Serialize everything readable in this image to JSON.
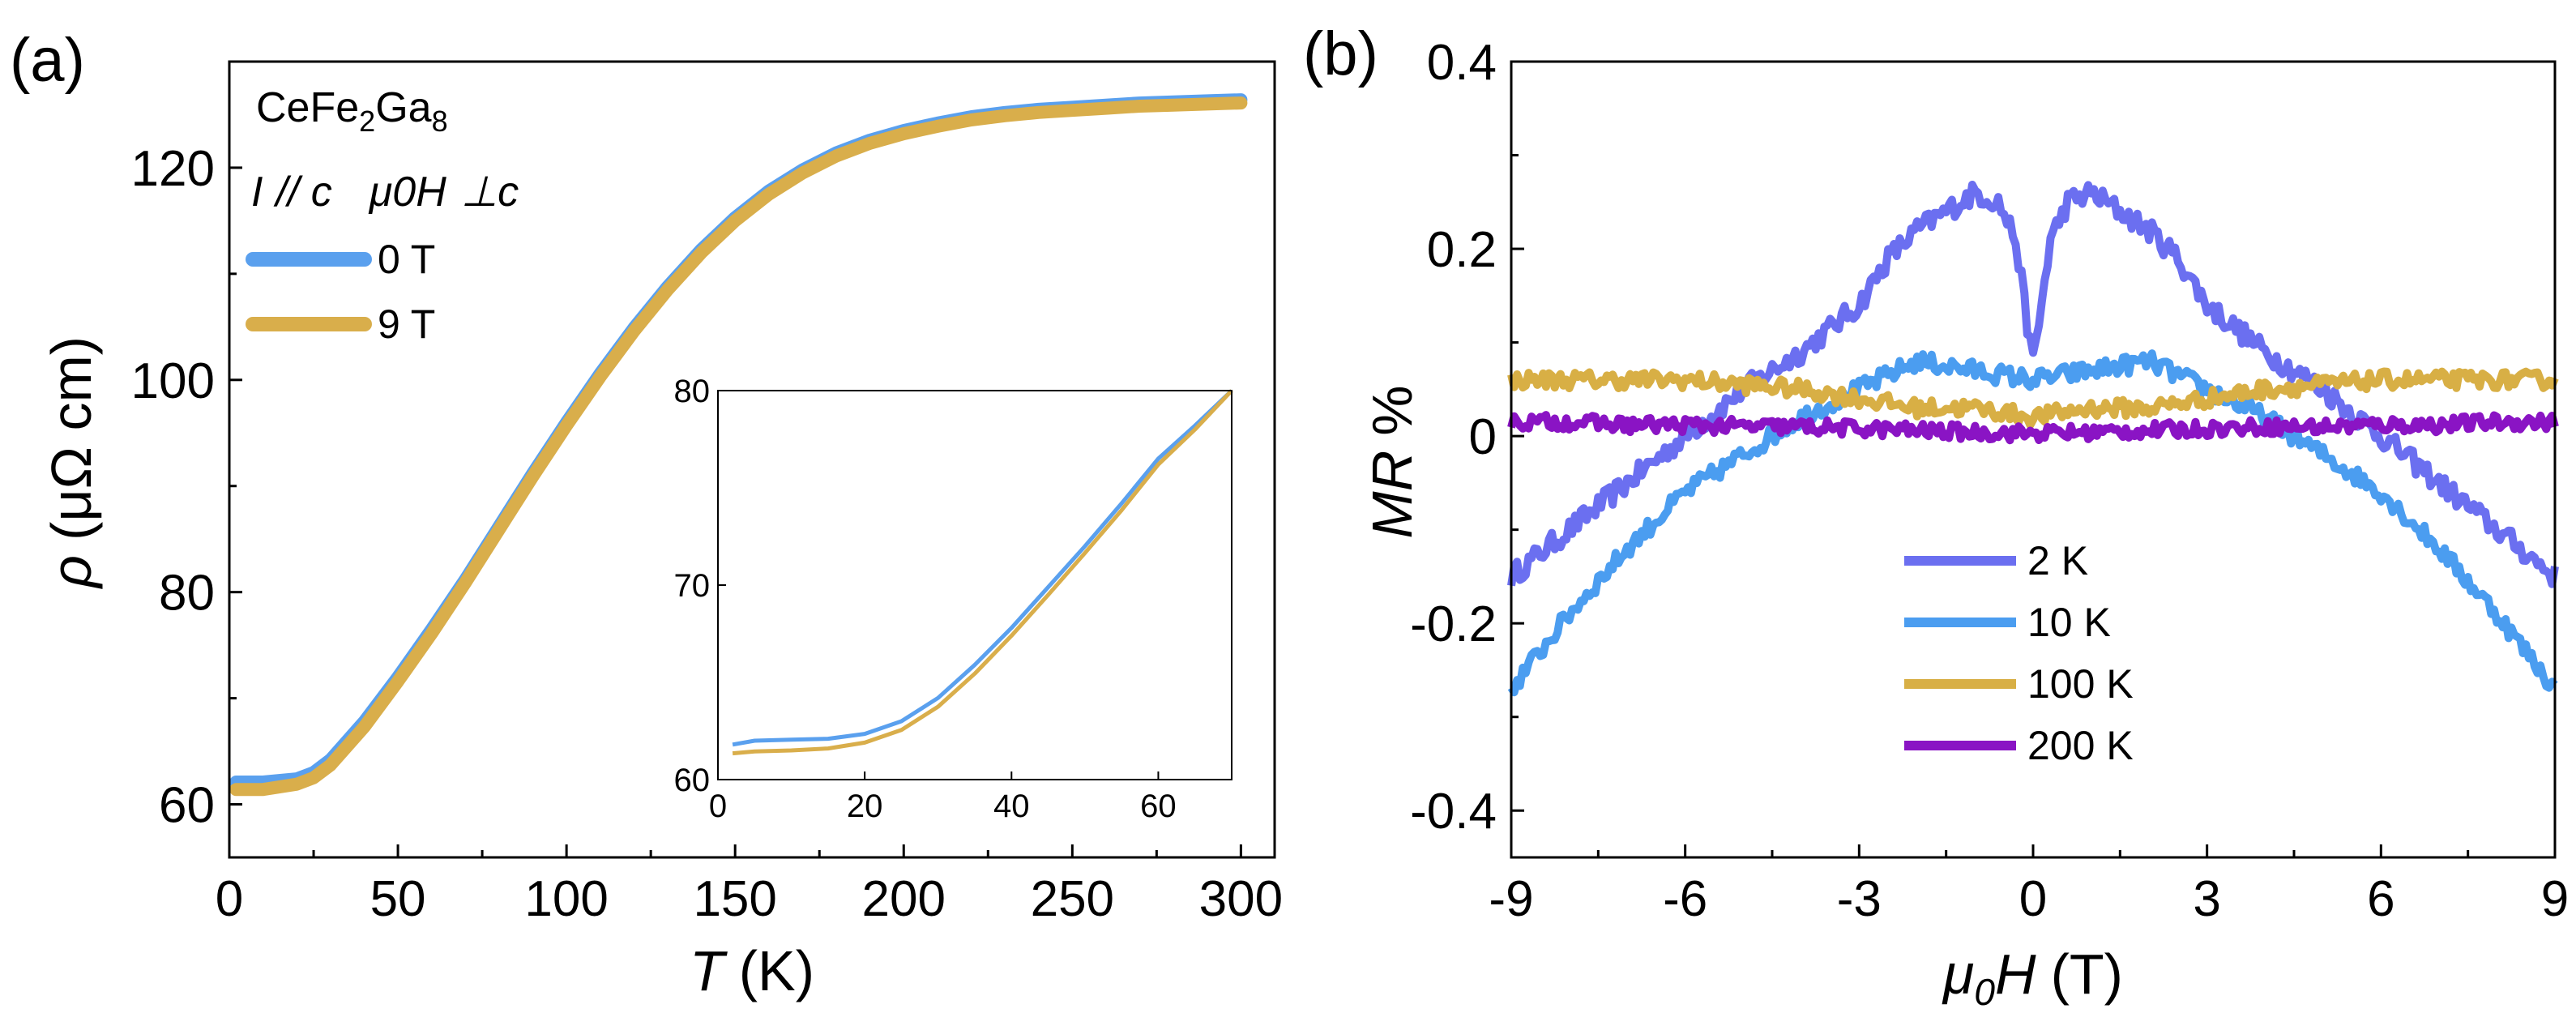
{
  "chart_data": [
    {
      "panel": "(a)",
      "type": "line",
      "xlabel_italic": "T",
      "xlabel_unit": "(K)",
      "ylabel_symbol": "ρ",
      "ylabel_unit": "(μΩ cm)",
      "xlim": [
        0,
        310
      ],
      "ylim": [
        55,
        130
      ],
      "xticks": [
        0,
        50,
        100,
        150,
        200,
        250,
        300
      ],
      "xtick_labels": [
        "0",
        "50",
        "100",
        "150",
        "200",
        "250",
        "300"
      ],
      "yticks": [
        60,
        80,
        100,
        120
      ],
      "ytick_labels": [
        "60",
        "80",
        "100",
        "120"
      ],
      "annotation_compound": "CeFe2Ga8",
      "annotation_compound_parts": [
        "CeFe",
        "2",
        "Ga",
        "8"
      ],
      "annotation_geometry_I": "I",
      "annotation_geometry_par": "// c",
      "annotation_geometry_field": "μ0H",
      "annotation_geometry_perp": "⊥c",
      "series": [
        {
          "name": "0 T",
          "color": "#5aa0ee",
          "x": [
            2,
            10,
            20,
            25,
            30,
            40,
            50,
            60,
            70,
            80,
            90,
            100,
            110,
            120,
            130,
            140,
            150,
            160,
            170,
            180,
            190,
            200,
            210,
            220,
            230,
            240,
            250,
            260,
            270,
            280,
            290,
            300
          ],
          "y": [
            62.1,
            62.1,
            62.4,
            63.0,
            64.2,
            67.8,
            72.0,
            76.5,
            81.2,
            86.2,
            91.2,
            96.0,
            100.6,
            104.9,
            108.8,
            112.3,
            115.3,
            117.8,
            119.8,
            121.4,
            122.6,
            123.5,
            124.2,
            124.8,
            125.2,
            125.5,
            125.7,
            125.9,
            126.1,
            126.2,
            126.3,
            126.4
          ]
        },
        {
          "name": "9 T",
          "color": "#d9ae4b",
          "x": [
            2,
            10,
            20,
            25,
            30,
            40,
            50,
            60,
            70,
            80,
            90,
            100,
            110,
            120,
            130,
            140,
            150,
            160,
            170,
            180,
            190,
            200,
            210,
            220,
            230,
            240,
            250,
            260,
            270,
            280,
            290,
            300
          ],
          "y": [
            61.4,
            61.4,
            61.9,
            62.5,
            63.7,
            67.3,
            71.6,
            76.1,
            80.9,
            85.9,
            90.9,
            95.7,
            100.3,
            104.6,
            108.5,
            112.0,
            115.0,
            117.5,
            119.5,
            121.1,
            122.3,
            123.2,
            123.9,
            124.5,
            124.9,
            125.2,
            125.4,
            125.6,
            125.8,
            125.9,
            126.0,
            126.1
          ]
        }
      ],
      "inset": {
        "type": "line",
        "xlim": [
          0,
          70
        ],
        "ylim": [
          60,
          80
        ],
        "xticks": [
          0,
          20,
          40,
          60
        ],
        "xtick_labels": [
          "0",
          "20",
          "40",
          "60"
        ],
        "yticks": [
          60,
          70,
          80
        ],
        "ytick_labels": [
          "60",
          "70",
          "80"
        ],
        "series": [
          {
            "name": "0 T",
            "color": "#5aa0ee",
            "x": [
              2,
              5,
              10,
              15,
              20,
              25,
              30,
              35,
              40,
              45,
              50,
              55,
              60,
              65,
              70
            ],
            "y": [
              61.8,
              62.0,
              62.05,
              62.1,
              62.35,
              63.0,
              64.2,
              65.9,
              67.8,
              69.9,
              72.0,
              74.2,
              76.5,
              78.2,
              80.0
            ]
          },
          {
            "name": "9 T",
            "color": "#d9ae4b",
            "x": [
              2,
              5,
              10,
              15,
              20,
              25,
              30,
              35,
              40,
              45,
              50,
              55,
              60,
              65,
              70
            ],
            "y": [
              61.35,
              61.45,
              61.5,
              61.6,
              61.9,
              62.55,
              63.75,
              65.45,
              67.4,
              69.5,
              71.65,
              73.85,
              76.2,
              78.0,
              80.0
            ]
          }
        ]
      }
    },
    {
      "panel": "(b)",
      "type": "line",
      "xlabel_field": "μ0H",
      "xlabel_unit": "(T)",
      "ylabel_italic": "MR",
      "ylabel_unit": "%",
      "xlim": [
        -9,
        9
      ],
      "ylim": [
        -0.45,
        0.4
      ],
      "xticks": [
        -9,
        -6,
        -3,
        0,
        3,
        6,
        9
      ],
      "xtick_labels": [
        "-9",
        "-6",
        "-3",
        "0",
        "3",
        "6",
        "9"
      ],
      "yticks": [
        -0.4,
        -0.2,
        0,
        0.2,
        0.4
      ],
      "ytick_labels": [
        "-0.4",
        "-0.2",
        "0",
        "0.2",
        "0.4"
      ],
      "series": [
        {
          "name": "2 K",
          "color": "#6b6ff0",
          "x": [
            -9,
            -8,
            -7,
            -6,
            -5,
            -4,
            -3,
            -2.5,
            -2,
            -1.5,
            -1,
            -0.6,
            -0.3,
            -0.1,
            0,
            0.1,
            0.3,
            0.6,
            1,
            1.5,
            2,
            2.5,
            3,
            4,
            5,
            6,
            7,
            8,
            9
          ],
          "y": [
            -0.15,
            -0.1,
            -0.05,
            0.0,
            0.05,
            0.09,
            0.14,
            0.19,
            0.22,
            0.24,
            0.26,
            0.25,
            0.21,
            0.12,
            0.08,
            0.12,
            0.21,
            0.25,
            0.26,
            0.24,
            0.22,
            0.19,
            0.14,
            0.09,
            0.05,
            0.0,
            -0.05,
            -0.1,
            -0.15
          ]
        },
        {
          "name": "10 K",
          "color": "#4b9df0",
          "x": [
            -9,
            -8,
            -7,
            -6,
            -5,
            -4,
            -3,
            -2,
            -1,
            0,
            1,
            2,
            3,
            4,
            5,
            6,
            7,
            8,
            9
          ],
          "y": [
            -0.27,
            -0.19,
            -0.12,
            -0.06,
            -0.02,
            0.02,
            0.05,
            0.08,
            0.07,
            0.06,
            0.07,
            0.08,
            0.05,
            0.02,
            -0.02,
            -0.06,
            -0.12,
            -0.19,
            -0.27
          ]
        },
        {
          "name": "100 K",
          "color": "#d8af45",
          "x": [
            -9,
            -8,
            -7,
            -6,
            -5,
            -4,
            -3,
            -2,
            -1,
            0,
            1,
            2,
            3,
            4,
            5,
            6,
            7,
            8,
            9
          ],
          "y": [
            0.06,
            0.06,
            0.06,
            0.06,
            0.055,
            0.05,
            0.04,
            0.03,
            0.03,
            0.02,
            0.03,
            0.03,
            0.04,
            0.05,
            0.055,
            0.06,
            0.06,
            0.06,
            0.06
          ]
        },
        {
          "name": "200 K",
          "color": "#8a14c4",
          "x": [
            -9,
            -8,
            -7,
            -6,
            -5,
            -4,
            -3,
            -2,
            -1,
            0,
            1,
            2,
            3,
            4,
            5,
            6,
            7,
            8,
            9
          ],
          "y": [
            0.015,
            0.015,
            0.012,
            0.012,
            0.01,
            0.01,
            0.008,
            0.006,
            0.004,
            0.003,
            0.004,
            0.006,
            0.008,
            0.01,
            0.01,
            0.012,
            0.012,
            0.015,
            0.015
          ]
        }
      ]
    }
  ]
}
